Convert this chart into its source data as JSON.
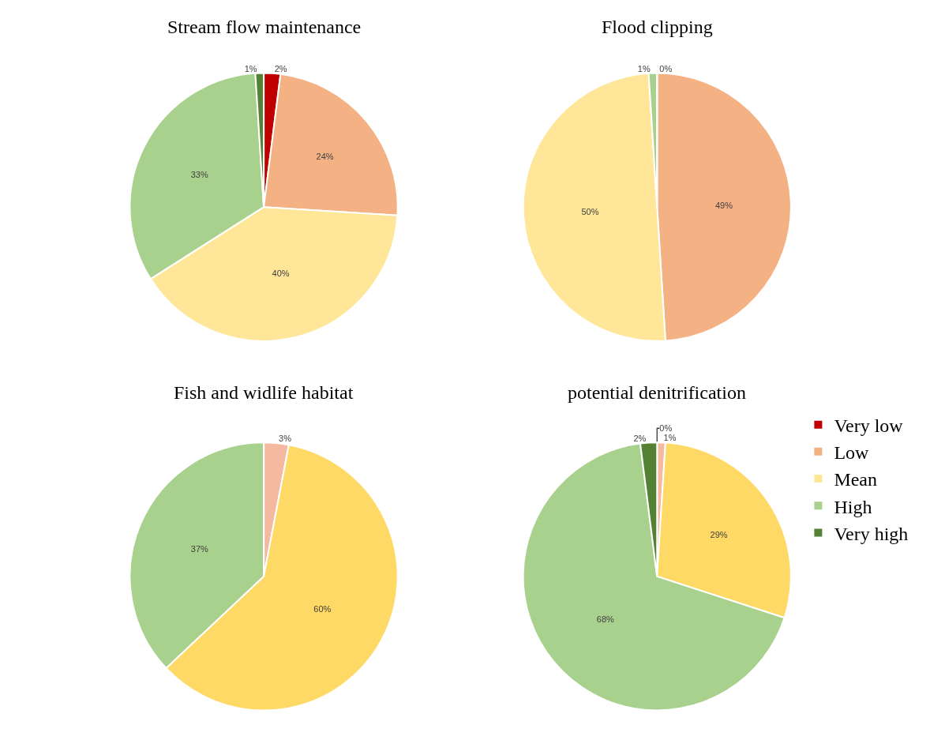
{
  "chart_data": [
    {
      "type": "pie",
      "title": "Stream flow maintenance",
      "categories": [
        "Very low",
        "Low",
        "Mean",
        "High",
        "Very high"
      ],
      "values": [
        2,
        24,
        40,
        33,
        1
      ],
      "value_labels": [
        "2%",
        "24%",
        "40%",
        "33%",
        "1%"
      ],
      "colors": [
        "#c00000",
        "#f4b183",
        "#ffe699",
        "#a9d18e",
        "#548235"
      ],
      "legend": "right"
    },
    {
      "type": "pie",
      "title": "Flood clipping",
      "categories": [
        null,
        null,
        null,
        null,
        null
      ],
      "values": [
        0,
        49,
        50,
        1,
        null
      ],
      "value_labels": [
        "0%",
        "49%",
        "50%",
        "1%",
        null
      ],
      "colors": [
        "#c00000",
        "#f4b183",
        "#ffe699",
        "#a9d18e",
        "#548235"
      ]
    },
    {
      "type": "pie",
      "title": "Fish and widlife habitat",
      "categories": [
        null,
        null,
        null,
        null,
        null
      ],
      "values": [
        null,
        3,
        60,
        37,
        null
      ],
      "value_labels": [
        null,
        "3%",
        "60%",
        "37%",
        null
      ],
      "colors": [
        "#c00000",
        "#f4b9a0",
        "#ffd966",
        "#a9d18e",
        "#548235"
      ]
    },
    {
      "type": "pie",
      "title": "potential denitrification",
      "categories": [
        null,
        null,
        null,
        null,
        null
      ],
      "values": [
        0,
        1,
        29,
        68,
        2
      ],
      "value_labels": [
        "0%",
        "1%",
        "29%",
        "68%",
        "2%"
      ],
      "colors": [
        "#c00000",
        "#f4b9a0",
        "#ffd966",
        "#a9d18e",
        "#548235"
      ]
    }
  ]
}
